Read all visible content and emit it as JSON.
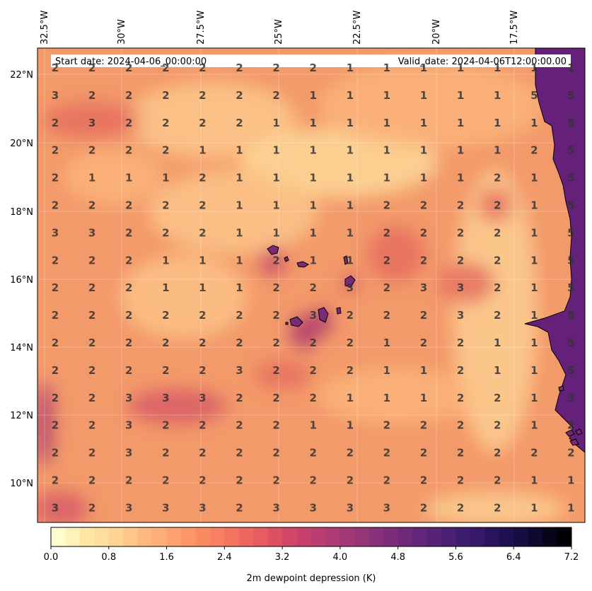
{
  "header": {
    "start_date": "Start date: 2024-04-06_00:00:00",
    "valid_date": "Valid_date: 2024-04-06T12:00:00.00"
  },
  "lon_labels": [
    "32.5°W",
    "30°W",
    "27.5°W",
    "25°W",
    "22.5°W",
    "20°W",
    "17.5°W"
  ],
  "lat_labels": [
    "22°N",
    "20°N",
    "18°N",
    "16°N",
    "14°N",
    "12°N",
    "10°N"
  ],
  "grid_values": [
    [
      2,
      2,
      2,
      2,
      2,
      2,
      2,
      2,
      1,
      1,
      1,
      1,
      1,
      1,
      1
    ],
    [
      3,
      2,
      2,
      2,
      2,
      2,
      2,
      1,
      1,
      1,
      1,
      1,
      1,
      5,
      5
    ],
    [
      2,
      3,
      2,
      2,
      2,
      2,
      1,
      1,
      1,
      1,
      1,
      1,
      1,
      1,
      5
    ],
    [
      2,
      2,
      2,
      2,
      1,
      1,
      1,
      1,
      1,
      1,
      1,
      1,
      1,
      2,
      5
    ],
    [
      2,
      1,
      1,
      1,
      2,
      1,
      1,
      1,
      1,
      1,
      1,
      1,
      2,
      1,
      5
    ],
    [
      2,
      2,
      2,
      2,
      2,
      1,
      1,
      1,
      1,
      2,
      2,
      2,
      2,
      1,
      5
    ],
    [
      3,
      3,
      2,
      2,
      2,
      1,
      1,
      1,
      1,
      2,
      2,
      2,
      2,
      1,
      5
    ],
    [
      2,
      2,
      2,
      1,
      1,
      1,
      2,
      1,
      1,
      2,
      2,
      2,
      2,
      1,
      5
    ],
    [
      2,
      2,
      2,
      1,
      1,
      1,
      2,
      2,
      3,
      2,
      3,
      3,
      2,
      1,
      5
    ],
    [
      2,
      2,
      2,
      2,
      2,
      2,
      2,
      3,
      2,
      2,
      2,
      3,
      2,
      1,
      5
    ],
    [
      2,
      2,
      2,
      2,
      2,
      2,
      2,
      2,
      2,
      1,
      2,
      2,
      1,
      1,
      5
    ],
    [
      2,
      2,
      2,
      2,
      2,
      3,
      2,
      2,
      2,
      1,
      1,
      2,
      1,
      1,
      5
    ],
    [
      2,
      2,
      3,
      3,
      3,
      2,
      2,
      2,
      1,
      1,
      1,
      2,
      2,
      1,
      3
    ],
    [
      2,
      2,
      3,
      2,
      2,
      2,
      2,
      1,
      1,
      2,
      2,
      2,
      2,
      1,
      2
    ],
    [
      2,
      2,
      3,
      2,
      2,
      2,
      2,
      2,
      2,
      2,
      2,
      2,
      2,
      2,
      2
    ],
    [
      2,
      2,
      2,
      2,
      2,
      2,
      2,
      2,
      2,
      2,
      2,
      2,
      2,
      1,
      1
    ],
    [
      3,
      2,
      3,
      3,
      3,
      2,
      3,
      3,
      3,
      3,
      2,
      2,
      2,
      1,
      1
    ]
  ],
  "colorbar": {
    "ticks": [
      "0.0",
      "0.8",
      "1.6",
      "2.4",
      "3.2",
      "4.0",
      "4.8",
      "5.6",
      "6.4",
      "7.2"
    ],
    "label": "2m dewpoint depression (K)",
    "colors": [
      "#fffccd",
      "#fee8a5",
      "#fed595",
      "#feba80",
      "#fda56f",
      "#fb8e62",
      "#f6775d",
      "#ea605e",
      "#d74a66",
      "#c13e6f",
      "#a93a76",
      "#913477",
      "#782b79",
      "#5f2579",
      "#461f72",
      "#321867",
      "#1e1150",
      "#0d0a2d",
      "#000004"
    ]
  },
  "map": {
    "ocean_base_color": "#f39a6a",
    "land_color": "#65217a",
    "coast_color": "#000000"
  }
}
